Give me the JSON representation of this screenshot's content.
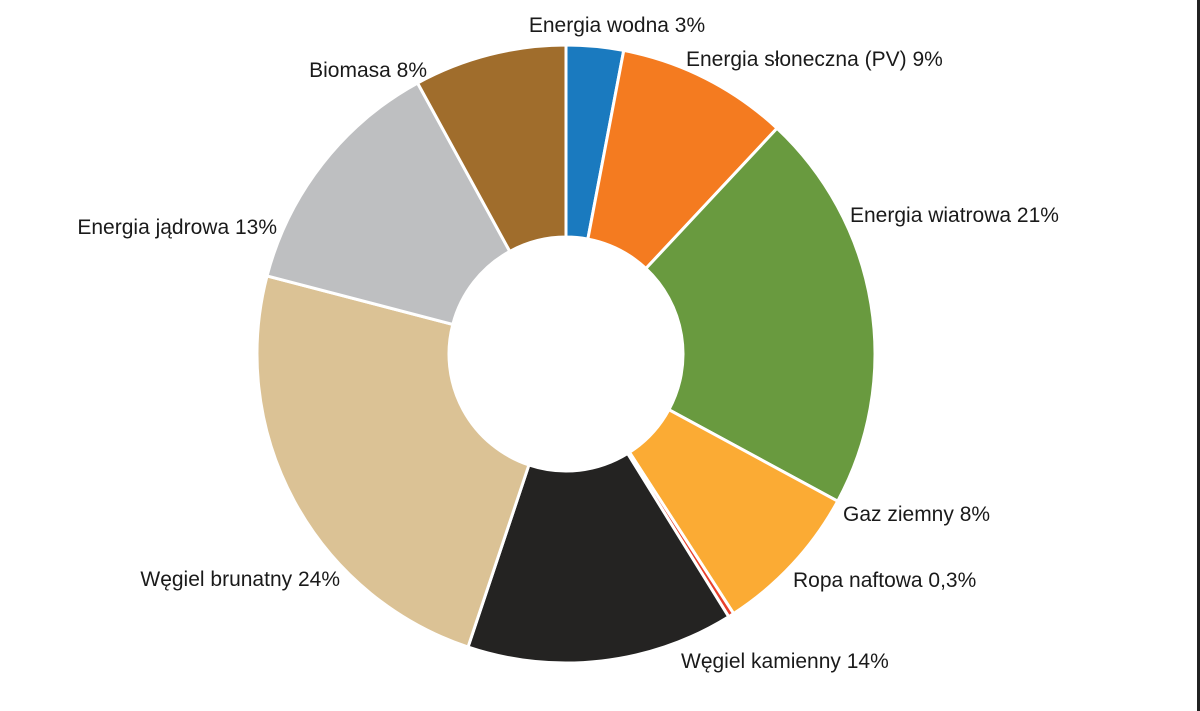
{
  "chart_data": {
    "type": "pie",
    "title": "",
    "slices": [
      {
        "label": "Energia wodna 3%",
        "name": "Energia wodna",
        "value": 3,
        "color": "#1a7abf"
      },
      {
        "label": "Energia słoneczna (PV) 9%",
        "name": "Energia słoneczna (PV)",
        "value": 9,
        "color": "#f47b20"
      },
      {
        "label": "Energia wiatrowa 21%",
        "name": "Energia wiatrowa",
        "value": 21,
        "color": "#699a3f"
      },
      {
        "label": "Gaz ziemny 8%",
        "name": "Gaz ziemny",
        "value": 8,
        "color": "#fbab34"
      },
      {
        "label": "Ropa naftowa 0,3%",
        "name": "Ropa naftowa",
        "value": 0.3,
        "color": "#e8412b"
      },
      {
        "label": "Węgiel kamienny 14%",
        "name": "Węgiel kamienny",
        "value": 14,
        "color": "#242322"
      },
      {
        "label": "Węgiel brunatny 24%",
        "name": "Węgiel brunatny",
        "value": 24,
        "color": "#dbc295"
      },
      {
        "label": "Energia jądrowa 13%",
        "name": "Energia jądrowa",
        "value": 13,
        "color": "#bebfc1"
      },
      {
        "label": "Biomasa 8%",
        "name": "Biomasa",
        "value": 8,
        "color": "#a06d2c"
      }
    ],
    "donut": true,
    "start_at": "top",
    "direction": "clockwise",
    "legend": "none",
    "labels": "outside"
  }
}
